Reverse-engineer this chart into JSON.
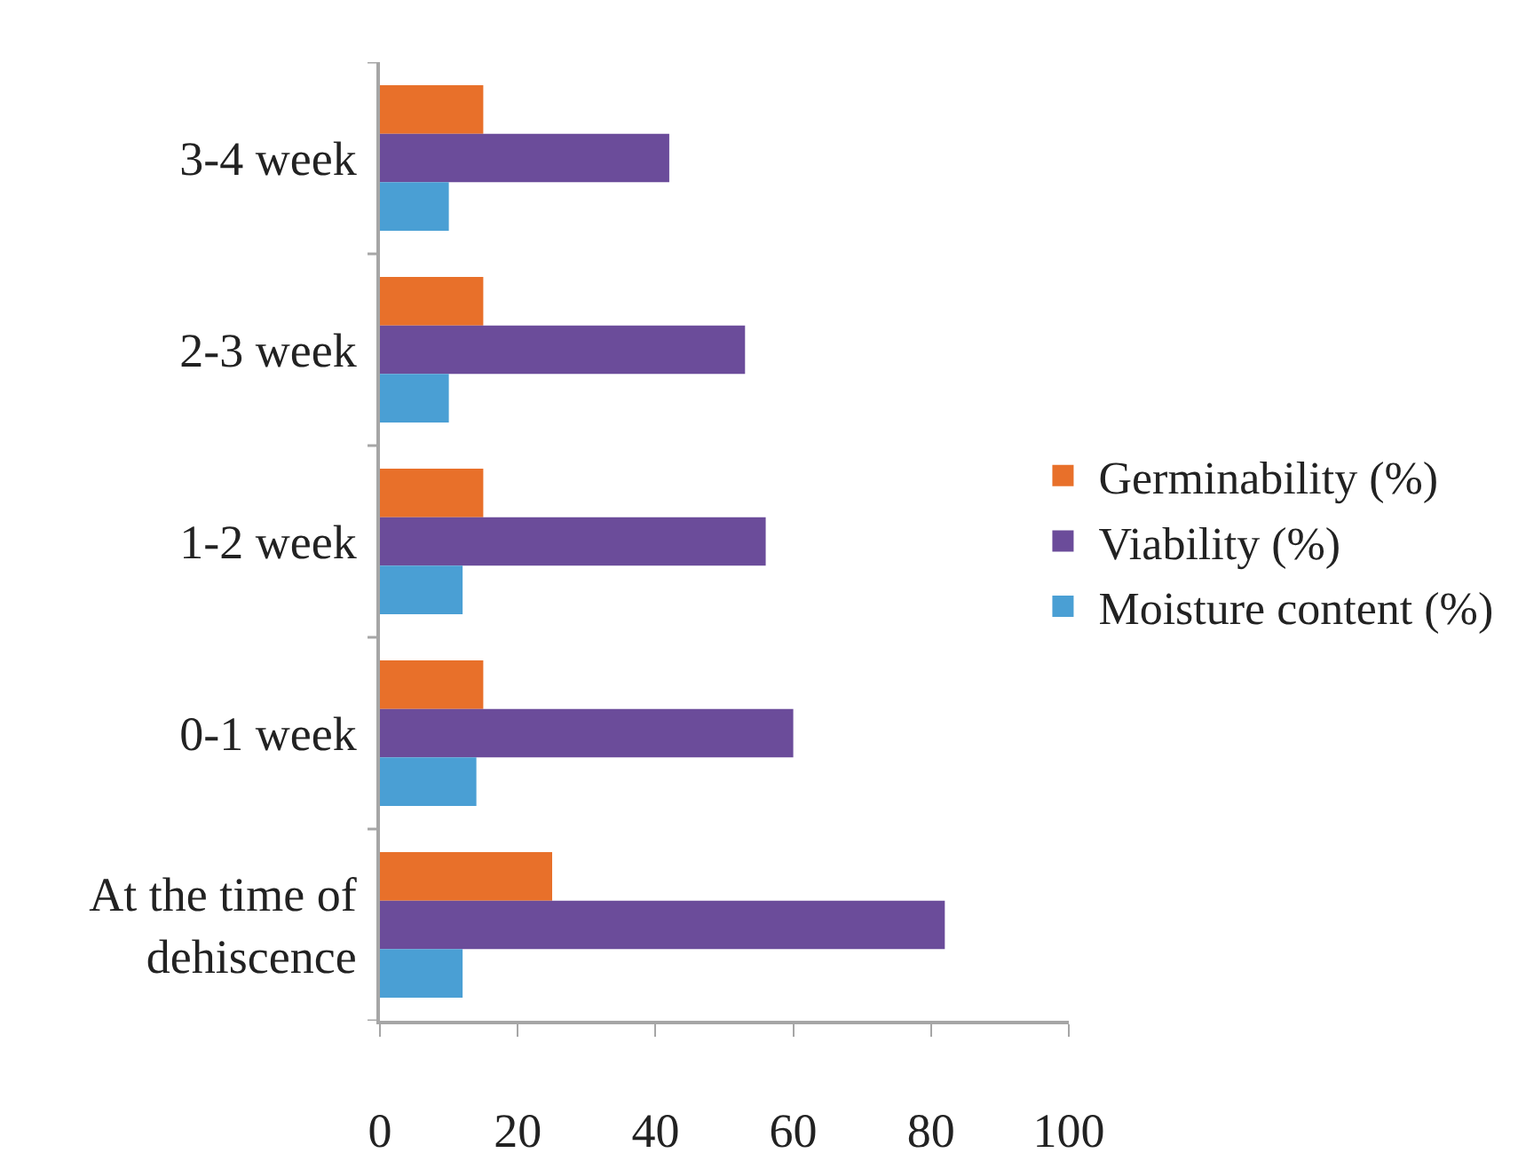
{
  "chart_data": {
    "type": "bar",
    "orientation": "horizontal",
    "categories": [
      "3-4 week",
      "2-3 week",
      "1-2 week",
      "0-1 week",
      "At the time of dehiscence"
    ],
    "series": [
      {
        "name": "Germinability (%)",
        "color": "#e8702a",
        "values": [
          15,
          15,
          15,
          15,
          25
        ]
      },
      {
        "name": "Viability (%)",
        "color": "#6b4c9a",
        "values": [
          42,
          53,
          56,
          60,
          82
        ]
      },
      {
        "name": "Moisture content (%)",
        "color": "#4a9fd4",
        "values": [
          10,
          10,
          12,
          14,
          12
        ]
      }
    ],
    "xlim": [
      0,
      100
    ],
    "xticks": [
      0,
      20,
      40,
      60,
      80,
      100
    ],
    "grid": false,
    "legend": "right"
  }
}
